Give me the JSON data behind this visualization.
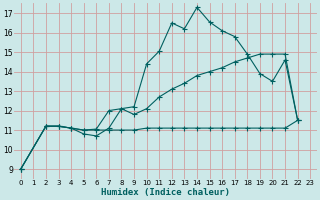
{
  "background_color": "#cce8e8",
  "grid_color": "#d0a0a0",
  "line_color": "#006060",
  "marker_color": "#006060",
  "xlabel": "Humidex (Indice chaleur)",
  "xlim": [
    -0.5,
    23.5
  ],
  "ylim": [
    8.5,
    17.5
  ],
  "xticks": [
    0,
    1,
    2,
    3,
    4,
    5,
    6,
    7,
    8,
    9,
    10,
    11,
    12,
    13,
    14,
    15,
    16,
    17,
    18,
    19,
    20,
    21,
    22,
    23
  ],
  "yticks": [
    9,
    10,
    11,
    12,
    13,
    14,
    15,
    16,
    17
  ],
  "line1_x": [
    0,
    2,
    3,
    4,
    5,
    6,
    7,
    8,
    9,
    10,
    11,
    12,
    13,
    14,
    15,
    16,
    17,
    18,
    19,
    20,
    21,
    22
  ],
  "line1_y": [
    9.0,
    11.2,
    11.2,
    11.1,
    10.8,
    10.7,
    11.1,
    12.1,
    12.2,
    14.4,
    15.05,
    16.5,
    16.2,
    17.3,
    16.55,
    16.1,
    15.8,
    14.9,
    13.9,
    13.5,
    14.6,
    11.5
  ],
  "line2_x": [
    0,
    2,
    3,
    4,
    5,
    6,
    7,
    8,
    9,
    10,
    11,
    12,
    13,
    14,
    15,
    16,
    17,
    18,
    19,
    20,
    21,
    22
  ],
  "line2_y": [
    9.0,
    11.2,
    11.2,
    11.1,
    11.0,
    11.05,
    12.0,
    12.1,
    11.8,
    12.1,
    12.7,
    13.1,
    13.4,
    13.8,
    14.0,
    14.2,
    14.5,
    14.7,
    14.9,
    14.9,
    14.9,
    11.5
  ],
  "line3_x": [
    0,
    2,
    3,
    4,
    5,
    6,
    7,
    8,
    9,
    10,
    11,
    12,
    13,
    14,
    15,
    16,
    17,
    18,
    19,
    20,
    21,
    22
  ],
  "line3_y": [
    9.0,
    11.2,
    11.2,
    11.1,
    11.0,
    11.0,
    11.0,
    11.0,
    11.0,
    11.1,
    11.1,
    11.1,
    11.1,
    11.1,
    11.1,
    11.1,
    11.1,
    11.1,
    11.1,
    11.1,
    11.1,
    11.5
  ]
}
